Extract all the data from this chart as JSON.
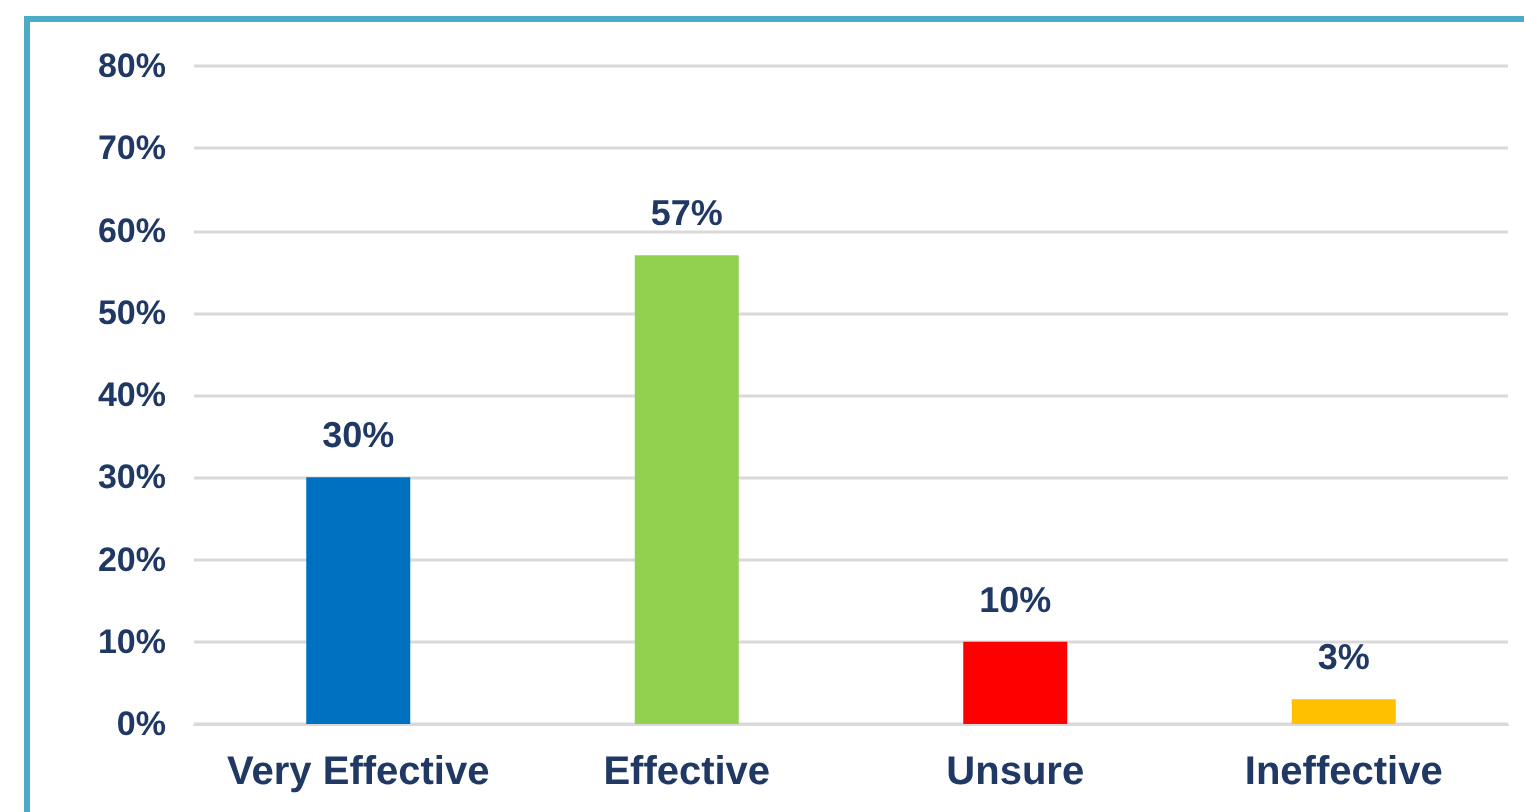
{
  "chart_data": {
    "type": "bar",
    "categories": [
      "Very Effective",
      "Effective",
      "Unsure",
      "Ineffective"
    ],
    "values": [
      30,
      57,
      10,
      3
    ],
    "colors": [
      "#0070c0",
      "#92d050",
      "#ff0000",
      "#ffc000"
    ],
    "value_labels": [
      "30%",
      "57%",
      "10%",
      "3%"
    ],
    "ylim": [
      0,
      80
    ],
    "yticks": [
      {
        "value": 0,
        "label": "0%"
      },
      {
        "value": 10,
        "label": "10%"
      },
      {
        "value": 20,
        "label": "20%"
      },
      {
        "value": 30,
        "label": "30%"
      },
      {
        "value": 40,
        "label": "40%"
      },
      {
        "value": 50,
        "label": "50%"
      },
      {
        "value": 60,
        "label": "60%"
      },
      {
        "value": 70,
        "label": "70%"
      },
      {
        "value": 80,
        "label": "80%"
      }
    ],
    "grid": "y"
  }
}
